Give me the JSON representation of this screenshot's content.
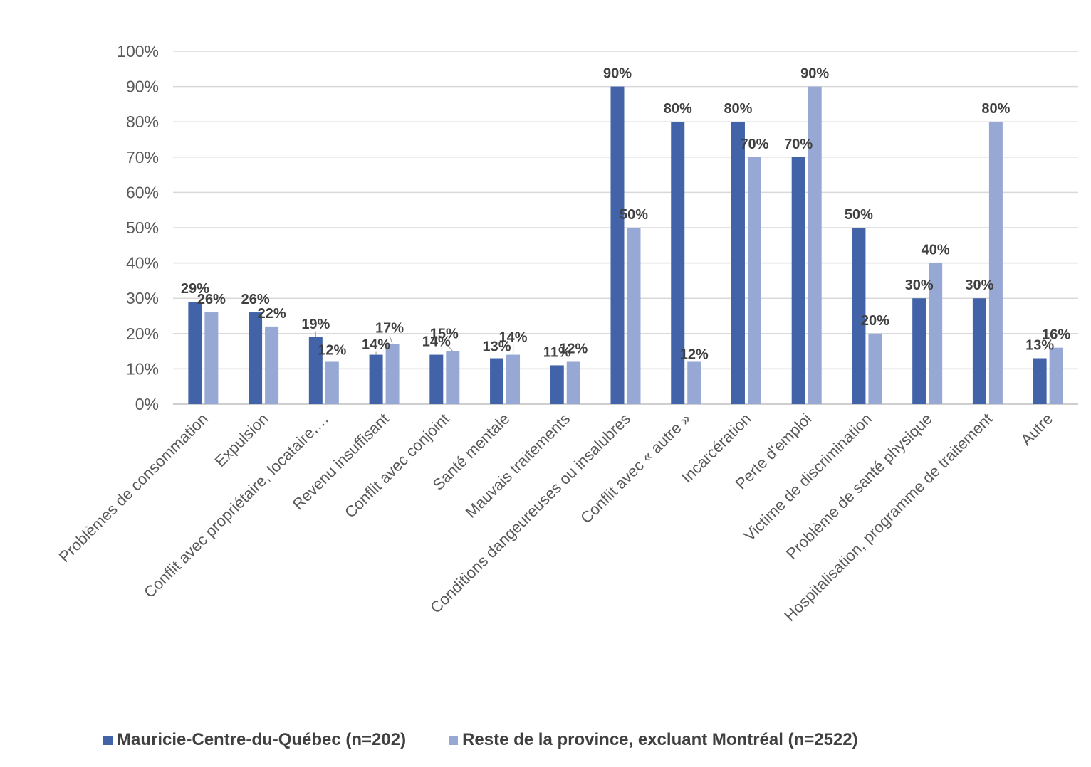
{
  "chart_data": {
    "type": "bar",
    "categories": [
      "Problèmes de consommation",
      "Expulsion",
      "Conflit avec propriétaire, locataire,…",
      "Revenu insuffisant",
      "Conflit avec conjoint",
      "Santé mentale",
      "Mauvais traitements",
      "Conditions dangeureuses ou insalubres",
      "Conflit avec « autre »",
      "Incarcération",
      "Perte d'emploi",
      "Victime de discrimination",
      "Problème de santé physique",
      "Hospitalisation, programme de traitement",
      "Autre"
    ],
    "series": [
      {
        "name": "Mauricie-Centre-du-Québec (n=202)",
        "color": "#4363A8",
        "values": [
          29,
          26,
          19,
          14,
          14,
          13,
          11,
          90,
          80,
          80,
          70,
          50,
          30,
          30,
          13
        ],
        "labels": [
          "29%",
          "26%",
          "19%",
          "14%",
          "14%",
          "13%",
          "11%",
          "90%",
          "80%",
          "80%",
          "70%",
          "50%",
          "30%",
          "30%",
          "13%"
        ]
      },
      {
        "name": "Reste de la province, excluant Montréal (n=2522)",
        "color": "#97A8D5",
        "values": [
          26,
          22,
          12,
          17,
          15,
          14,
          12,
          50,
          12,
          70,
          90,
          20,
          40,
          80,
          16
        ],
        "labels": [
          "26%",
          "22%",
          "12%",
          "17%",
          "15%",
          "14%",
          "12%",
          "50%",
          "12%",
          "70%",
          "90%",
          "20%",
          "40%",
          "80%",
          "16%"
        ]
      }
    ],
    "y_ticks": [
      "0%",
      "10%",
      "20%",
      "30%",
      "40%",
      "50%",
      "60%",
      "70%",
      "80%",
      "90%",
      "100%"
    ],
    "ylim": [
      0,
      100
    ],
    "grid": true,
    "legend": "bottom",
    "title": "",
    "xlabel": "",
    "ylabel": ""
  }
}
